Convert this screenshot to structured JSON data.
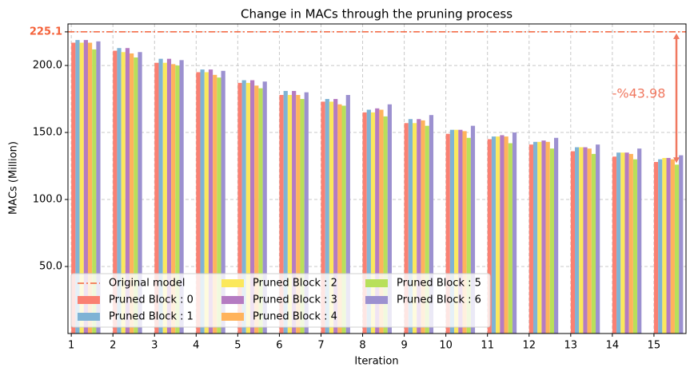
{
  "chart_data": {
    "type": "bar",
    "title": "Change in MACs through the pruning process",
    "xlabel": "Iteration",
    "ylabel": "MACs (Million)",
    "x": [
      1,
      2,
      3,
      4,
      5,
      6,
      7,
      8,
      9,
      10,
      11,
      12,
      13,
      14,
      15
    ],
    "xlim": [
      0.92,
      15.77
    ],
    "xticks": [
      1,
      2,
      3,
      4,
      5,
      6,
      7,
      8,
      9,
      10,
      11,
      12,
      13,
      14,
      15
    ],
    "ylim": [
      0,
      231
    ],
    "yticks": [
      {
        "value": 50,
        "label": "50.0"
      },
      {
        "value": 100,
        "label": "100.0"
      },
      {
        "value": 150,
        "label": "150.0"
      },
      {
        "value": 200,
        "label": "200.0"
      },
      225.1
    ],
    "grid": true,
    "legend": "lower left",
    "reference_line": {
      "name": "Original model",
      "value": 225.1,
      "color": "#f4623a"
    },
    "annotation": {
      "text": "-%43.98",
      "from": 225.1,
      "to": 126.1,
      "color": "#f07860"
    },
    "series": [
      {
        "name": "Pruned Block : 0",
        "color": "#fa8072",
        "values": [
          217,
          211,
          202,
          195,
          187,
          178,
          173,
          165,
          157,
          149,
          145,
          141,
          136,
          132,
          128
        ]
      },
      {
        "name": "Pruned Block : 1",
        "color": "#7fb3d5",
        "values": [
          219,
          213,
          205,
          197,
          189,
          181,
          175,
          167,
          160,
          152,
          147,
          143,
          139,
          135,
          130
        ]
      },
      {
        "name": "Pruned Block : 2",
        "color": "#fbe85c",
        "values": [
          217,
          210,
          202,
          195,
          187,
          178,
          173,
          165,
          157,
          152,
          147,
          143,
          139,
          135,
          131
        ]
      },
      {
        "name": "Pruned Block : 3",
        "color": "#b57bc2",
        "values": [
          219,
          213,
          205,
          197,
          189,
          181,
          175,
          168,
          160,
          152,
          148,
          144,
          139,
          135,
          131
        ]
      },
      {
        "name": "Pruned Block : 4",
        "color": "#ffb35c",
        "values": [
          217,
          209,
          201,
          193,
          185,
          178,
          171,
          167,
          159,
          151,
          147,
          143,
          138,
          134,
          130
        ]
      },
      {
        "name": "Pruned Block : 5",
        "color": "#b8e05a",
        "values": [
          212,
          206,
          200,
          191,
          183,
          175,
          170,
          162,
          155,
          146,
          142,
          138,
          134,
          130,
          126
        ]
      },
      {
        "name": "Pruned Block : 6",
        "color": "#9c91d0",
        "values": [
          218,
          210,
          204,
          196,
          188,
          180,
          178,
          171,
          163,
          155,
          150,
          146,
          141,
          138,
          133
        ]
      }
    ]
  }
}
